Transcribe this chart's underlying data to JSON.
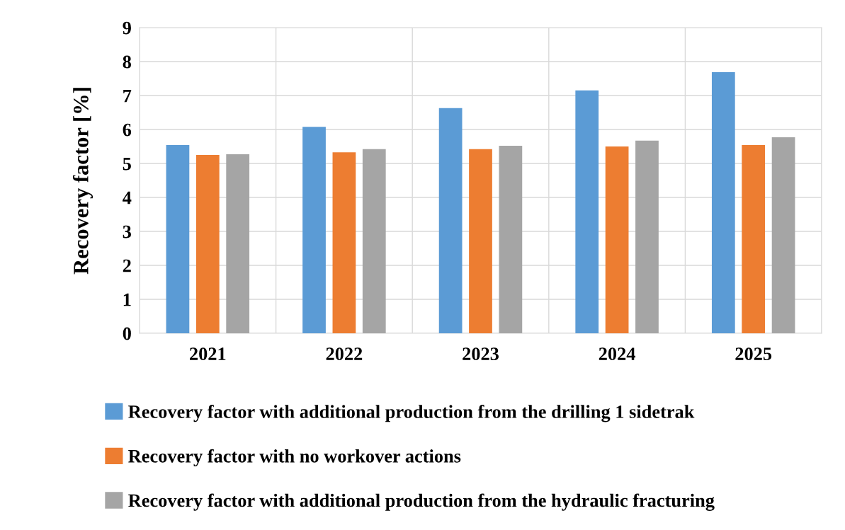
{
  "chart_data": {
    "type": "bar",
    "ylabel": "Recovery factor [%]",
    "categories": [
      "2021",
      "2022",
      "2023",
      "2024",
      "2025"
    ],
    "series": [
      {
        "name": "Recovery factor with additional production from the drilling 1 sidetrak",
        "color": "#5b9bd5",
        "values": [
          5.54,
          6.08,
          6.63,
          7.15,
          7.69
        ]
      },
      {
        "name": "Recovery factor with no workover actions",
        "color": "#ed7d31",
        "values": [
          5.25,
          5.33,
          5.42,
          5.5,
          5.54
        ]
      },
      {
        "name": "Recovery factor with additional production from the hydraulic fracturing",
        "color": "#a5a5a5",
        "values": [
          5.27,
          5.42,
          5.52,
          5.67,
          5.77
        ]
      }
    ],
    "ylim": [
      0,
      9
    ],
    "yticks": [
      0,
      1,
      2,
      3,
      4,
      5,
      6,
      7,
      8,
      9
    ],
    "grid": true,
    "legend": "bottom"
  }
}
